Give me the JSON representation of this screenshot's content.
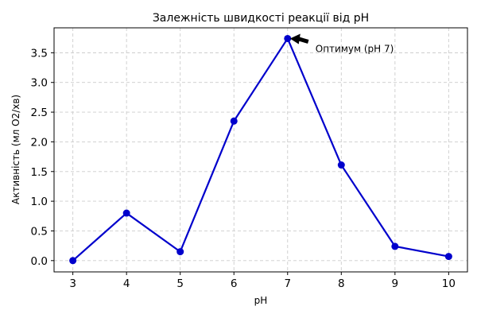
{
  "chart_data": {
    "type": "line",
    "title": "Залежність швидкості реакції від pH",
    "xlabel": "pH",
    "ylabel": "Активність (мл O2/хв)",
    "x": [
      3,
      4,
      5,
      6,
      7,
      8,
      9,
      10
    ],
    "series": [
      {
        "values": [
          0.0,
          0.8,
          0.15,
          2.35,
          3.74,
          1.61,
          0.24,
          0.07
        ]
      }
    ],
    "xlim": [
      2.65,
      10.35
    ],
    "ylim": [
      -0.19,
      3.92
    ],
    "xticks": [
      3,
      4,
      5,
      6,
      7,
      8,
      9,
      10
    ],
    "yticks": [
      0.0,
      0.5,
      1.0,
      1.5,
      2.0,
      2.5,
      3.0,
      3.5
    ],
    "ytick_labels": [
      "0.0",
      "0.5",
      "1.0",
      "1.5",
      "2.0",
      "2.5",
      "3.0",
      "3.5"
    ],
    "grid": true,
    "color": "#0000cc",
    "annotation": {
      "text": "Оптимум (pH 7)",
      "x": 7,
      "y": 3.74
    }
  }
}
